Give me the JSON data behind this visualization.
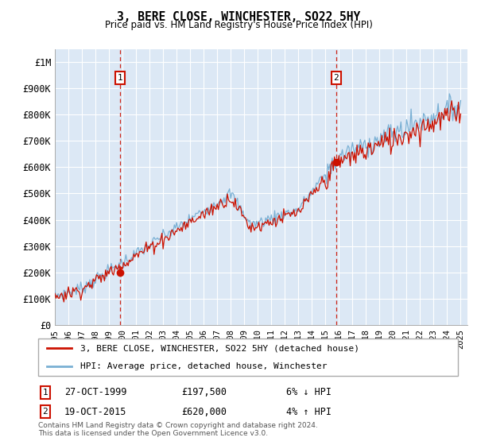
{
  "title": "3, BERE CLOSE, WINCHESTER, SO22 5HY",
  "subtitle": "Price paid vs. HM Land Registry's House Price Index (HPI)",
  "ylabel_ticks": [
    "£0",
    "£100K",
    "£200K",
    "£300K",
    "£400K",
    "£500K",
    "£600K",
    "£700K",
    "£800K",
    "£900K",
    "£1M"
  ],
  "ytick_values": [
    0,
    100000,
    200000,
    300000,
    400000,
    500000,
    600000,
    700000,
    800000,
    900000,
    1000000
  ],
  "ylim": [
    0,
    1050000
  ],
  "xlim_start": 1995.0,
  "xlim_end": 2025.5,
  "background_color": "#dce8f5",
  "plot_bg_color": "#dce8f5",
  "hpi_color": "#7ab0d4",
  "price_color": "#cc1100",
  "grid_color": "#ffffff",
  "vline_color": "#cc1100",
  "sale1_x": 1999.82,
  "sale1_y": 197500,
  "sale1_label": "1",
  "sale1_date": "27-OCT-1999",
  "sale1_price": "£197,500",
  "sale1_hpi": "6% ↓ HPI",
  "sale2_x": 2015.8,
  "sale2_y": 620000,
  "sale2_label": "2",
  "sale2_date": "19-OCT-2015",
  "sale2_price": "£620,000",
  "sale2_hpi": "4% ↑ HPI",
  "legend_line1": "3, BERE CLOSE, WINCHESTER, SO22 5HY (detached house)",
  "legend_line2": "HPI: Average price, detached house, Winchester",
  "footer": "Contains HM Land Registry data © Crown copyright and database right 2024.\nThis data is licensed under the Open Government Licence v3.0."
}
